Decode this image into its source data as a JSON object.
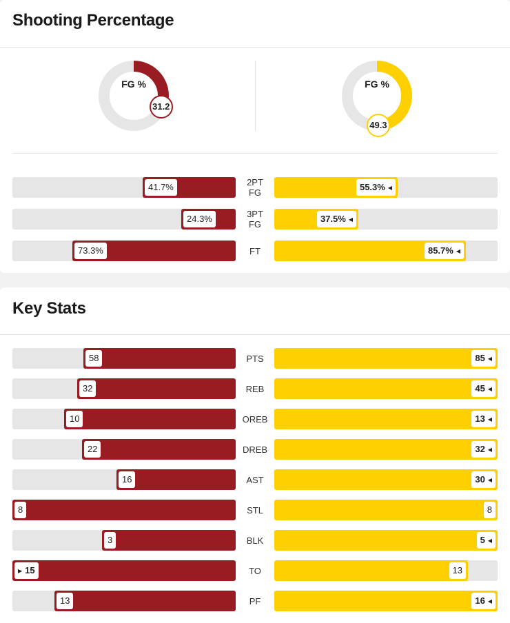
{
  "shooting": {
    "title": "Shooting Percentage",
    "donuts": [
      {
        "label": "FG %",
        "value": 31.2,
        "display": "31.2",
        "color": "#9a1c23"
      },
      {
        "label": "FG %",
        "value": 49.3,
        "display": "49.3",
        "color": "#ffd000"
      }
    ],
    "rows": [
      {
        "label": "2PT FG",
        "left": {
          "value": 41.7,
          "display": "41.7%",
          "winner": false
        },
        "right": {
          "value": 55.3,
          "display": "55.3%",
          "winner": true
        }
      },
      {
        "label": "3PT FG",
        "left": {
          "value": 24.3,
          "display": "24.3%",
          "winner": false
        },
        "right": {
          "value": 37.5,
          "display": "37.5%",
          "winner": true
        }
      },
      {
        "label": "FT",
        "left": {
          "value": 73.3,
          "display": "73.3%",
          "winner": false
        },
        "right": {
          "value": 85.7,
          "display": "85.7%",
          "winner": true
        }
      }
    ]
  },
  "keystats": {
    "title": "Key Stats",
    "rows": [
      {
        "label": "PTS",
        "left": {
          "value": 58,
          "display": "58",
          "winner": false
        },
        "right": {
          "value": 85,
          "display": "85",
          "winner": true
        },
        "fraction_left": 0.682,
        "fraction_right": 1.0
      },
      {
        "label": "REB",
        "left": {
          "value": 32,
          "display": "32",
          "winner": false
        },
        "right": {
          "value": 45,
          "display": "45",
          "winner": true
        },
        "fraction_left": 0.711,
        "fraction_right": 1.0
      },
      {
        "label": "OREB",
        "left": {
          "value": 10,
          "display": "10",
          "winner": false
        },
        "right": {
          "value": 13,
          "display": "13",
          "winner": true
        },
        "fraction_left": 0.769,
        "fraction_right": 1.0
      },
      {
        "label": "DREB",
        "left": {
          "value": 22,
          "display": "22",
          "winner": false
        },
        "right": {
          "value": 32,
          "display": "32",
          "winner": true
        },
        "fraction_left": 0.688,
        "fraction_right": 1.0
      },
      {
        "label": "AST",
        "left": {
          "value": 16,
          "display": "16",
          "winner": false
        },
        "right": {
          "value": 30,
          "display": "30",
          "winner": true
        },
        "fraction_left": 0.533,
        "fraction_right": 1.0
      },
      {
        "label": "STL",
        "left": {
          "value": 8,
          "display": "8",
          "winner": false
        },
        "right": {
          "value": 8,
          "display": "8",
          "winner": false
        },
        "fraction_left": 1.0,
        "fraction_right": 1.0
      },
      {
        "label": "BLK",
        "left": {
          "value": 3,
          "display": "3",
          "winner": false
        },
        "right": {
          "value": 5,
          "display": "5",
          "winner": true
        },
        "fraction_left": 0.6,
        "fraction_right": 1.0
      },
      {
        "label": "TO",
        "left": {
          "value": 15,
          "display": "15",
          "winner": true
        },
        "right": {
          "value": 13,
          "display": "13",
          "winner": false
        },
        "fraction_left": 1.0,
        "fraction_right": 0.867
      },
      {
        "label": "PF",
        "left": {
          "value": 13,
          "display": "13",
          "winner": false
        },
        "right": {
          "value": 16,
          "display": "16",
          "winner": true
        },
        "fraction_left": 0.8125,
        "fraction_right": 1.0
      }
    ]
  },
  "colors": {
    "team_left": "#9a1c23",
    "team_right": "#ffd000",
    "track": "#e6e6e6"
  },
  "icons": {
    "winner_right": "caret-left-icon",
    "winner_left": "caret-right-icon"
  }
}
